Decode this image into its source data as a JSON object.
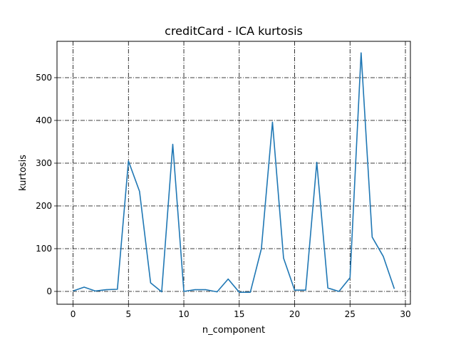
{
  "chart_data": {
    "type": "line",
    "title": "creditCard - ICA kurtosis",
    "xlabel": "n_component",
    "ylabel": "kurtosis",
    "xlim": [
      -1.45,
      30.45
    ],
    "ylim": [
      -30,
      585
    ],
    "xticks": [
      0,
      5,
      10,
      15,
      20,
      25,
      30
    ],
    "yticks": [
      0,
      100,
      200,
      300,
      400,
      500
    ],
    "grid": true,
    "series": [
      {
        "color": "#1f77b4",
        "x": [
          0,
          1,
          2,
          3,
          4,
          5,
          6,
          7,
          8,
          9,
          10,
          11,
          12,
          13,
          14,
          15,
          16,
          17,
          18,
          19,
          20,
          21,
          22,
          23,
          24,
          25,
          26,
          27,
          28,
          29
        ],
        "y": [
          1,
          10,
          1,
          4,
          5,
          305,
          234,
          20,
          -1,
          344,
          0,
          4,
          4,
          -1,
          29,
          -2,
          -2,
          100,
          396,
          78,
          3,
          3,
          302,
          8,
          0,
          32,
          558,
          127,
          82,
          6
        ]
      }
    ]
  }
}
